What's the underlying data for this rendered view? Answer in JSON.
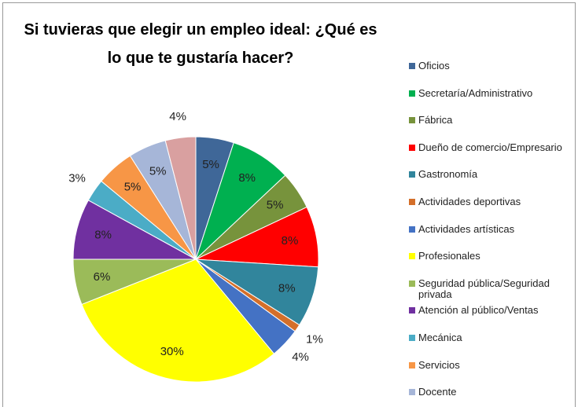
{
  "chart_data": {
    "type": "pie",
    "title": "Si tuvieras que elegir un empleo ideal: ¿Qué es lo que te gustaría hacer?",
    "categories": [
      "Oficios",
      "Secretaría/Administrativo",
      "Fábrica",
      "Dueño de comercio/Empresario",
      "Gastronomía",
      "Actividades deportivas",
      "Actividades artísticas",
      "Profesionales",
      "Seguridad pública/Seguridad privada",
      "Atención al público/Ventas",
      "Mecánica",
      "Servicios",
      "Docente",
      null
    ],
    "values": [
      5,
      8,
      5,
      8,
      8,
      1,
      4,
      30,
      6,
      8,
      3,
      5,
      5,
      4
    ],
    "value_labels": [
      "5%",
      "8%",
      "5%",
      "8%",
      "8%",
      "1%",
      "4%",
      "30%",
      "6%",
      "8%",
      "3%",
      "5%",
      "5%",
      "4%"
    ],
    "colors": [
      "#3f6798",
      "#00b050",
      "#77933c",
      "#ff0000",
      "#31859c",
      "#d46f2a",
      "#4472c4",
      "#ffff00",
      "#9bbb59",
      "#7030a0",
      "#4bacc6",
      "#f79646",
      "#a6b6d8",
      "#d9a0a0"
    ]
  }
}
